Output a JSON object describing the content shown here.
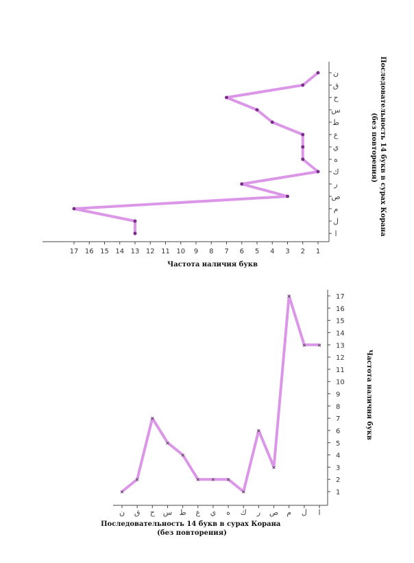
{
  "chart_data": [
    {
      "type": "line",
      "orientation": "horizontal",
      "categories": [
        "ا",
        "ل",
        "م",
        "ص",
        "ر",
        "ك",
        "ه",
        "ي",
        "ع",
        "ط",
        "س",
        "ح",
        "ق",
        "ن"
      ],
      "values": [
        13,
        13,
        17,
        3,
        6,
        1,
        2,
        2,
        2,
        4,
        5,
        7,
        2,
        1
      ],
      "x_ticks": [
        "1",
        "2",
        "3",
        "4",
        "5",
        "6",
        "7",
        "8",
        "9",
        "10",
        "11",
        "12",
        "13",
        "14",
        "15",
        "16",
        "17"
      ],
      "xlim": [
        1,
        17
      ],
      "x_reversed": true,
      "title": "Последовательность 14 букв в сурах Корана (без повторения)",
      "xlabel": "Частота наличия букв",
      "color": "#d78be6"
    },
    {
      "type": "line",
      "orientation": "vertical",
      "categories": [
        "ا",
        "ل",
        "م",
        "ص",
        "ر",
        "ك",
        "ه",
        "ي",
        "ع",
        "ط",
        "س",
        "ح",
        "ق",
        "ن"
      ],
      "values": [
        13,
        13,
        17,
        3,
        6,
        1,
        2,
        2,
        2,
        4,
        5,
        7,
        2,
        1
      ],
      "y_ticks": [
        "1",
        "2",
        "3",
        "4",
        "5",
        "6",
        "7",
        "8",
        "9",
        "10",
        "11",
        "12",
        "13",
        "14",
        "15",
        "16",
        "17"
      ],
      "ylim": [
        1,
        17
      ],
      "x_reversed": true,
      "xlabel": "Последовательность 14 букв в сурах Корана (без повторения)",
      "ylabel": "Частота наличия букв",
      "color": "#d78be6"
    }
  ]
}
